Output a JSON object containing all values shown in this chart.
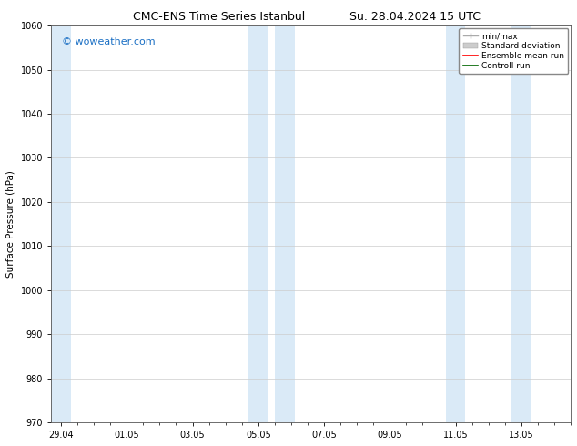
{
  "title_left": "CMC-ENS Time Series Istanbul",
  "title_right": "Su. 28.04.2024 15 UTC",
  "ylabel": "Surface Pressure (hPa)",
  "ylim": [
    970,
    1060
  ],
  "yticks": [
    970,
    980,
    990,
    1000,
    1010,
    1020,
    1030,
    1040,
    1050,
    1060
  ],
  "xtick_labels": [
    "29.04",
    "01.05",
    "03.05",
    "05.05",
    "07.05",
    "09.05",
    "11.05",
    "13.05"
  ],
  "xtick_positions": [
    0,
    2,
    4,
    6,
    8,
    10,
    12,
    14
  ],
  "xmin": -0.3,
  "xmax": 15.5,
  "shaded_bands": [
    {
      "xstart": -0.3,
      "xend": 0.3
    },
    {
      "xstart": 5.7,
      "xend": 6.3
    },
    {
      "xstart": 6.5,
      "xend": 7.1
    },
    {
      "xstart": 11.7,
      "xend": 12.3
    },
    {
      "xstart": 13.7,
      "xend": 14.3
    }
  ],
  "shaded_color": "#daeaf7",
  "background_color": "#ffffff",
  "watermark_text": "© woweather.com",
  "watermark_color": "#1a6fc4",
  "legend_items": [
    {
      "label": "min/max",
      "color": "#aaaaaa"
    },
    {
      "label": "Standard deviation",
      "color": "#cccccc"
    },
    {
      "label": "Ensemble mean run",
      "color": "#ff0000"
    },
    {
      "label": "Controll run",
      "color": "#006600"
    }
  ],
  "title_fontsize": 9,
  "tick_fontsize": 7,
  "legend_fontsize": 6.5,
  "ylabel_fontsize": 7.5
}
